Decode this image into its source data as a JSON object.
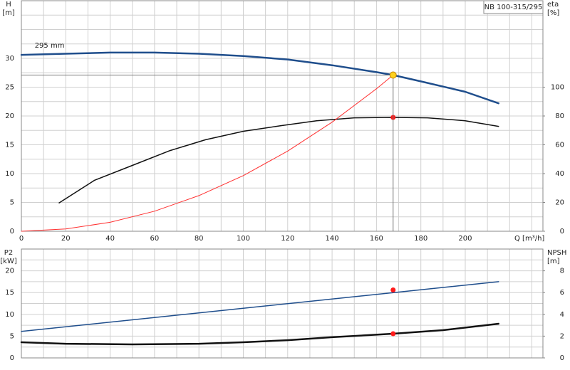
{
  "chart_data": [
    {
      "type": "line",
      "title": "NB 100-315/295",
      "ylabel": "H",
      "yunit": "[m]",
      "y2label": "eta",
      "y2unit": "[%]",
      "xlabel": "Q [m³/h]",
      "xlim": [
        0,
        235
      ],
      "ylim": [
        0,
        40
      ],
      "y2lim": [
        0,
        160
      ],
      "xticks": [
        0,
        20,
        40,
        60,
        80,
        100,
        120,
        140,
        160,
        180,
        200
      ],
      "yticks": [
        0,
        5,
        10,
        15,
        20,
        25,
        30
      ],
      "y2ticks": [
        0,
        20,
        40,
        60,
        80,
        100
      ],
      "xminor": [
        10,
        30,
        50,
        70,
        90,
        110,
        130,
        150,
        170,
        190,
        210,
        220,
        230
      ],
      "yminor": [
        2.5,
        7.5,
        12.5,
        17.5,
        22.5,
        27.5,
        32.5,
        35,
        37.5
      ],
      "annotation": {
        "text": "295 mm",
        "x": 6,
        "y": 32.2
      },
      "series": [
        {
          "color": "#1f4e8c",
          "width": 2.5,
          "x": [
            0,
            20,
            40,
            60,
            80,
            100,
            120,
            140,
            160,
            167.5,
            180,
            200,
            215
          ],
          "values": [
            30.6,
            30.8,
            31,
            31,
            30.8,
            30.4,
            29.8,
            28.8,
            27.6,
            27.1,
            26,
            24.2,
            22.2
          ]
        },
        {
          "color": "#111111",
          "width": 1.5,
          "axis": "y2",
          "x": [
            17,
            33,
            50,
            67,
            83,
            100,
            117,
            133,
            150,
            167,
            183,
            200,
            215
          ],
          "values": [
            19.7,
            35.4,
            45.7,
            56,
            63.5,
            69.4,
            73.3,
            76.7,
            78.7,
            79,
            78.7,
            76.7,
            72.8
          ]
        },
        {
          "color": "#ff3030",
          "width": 1,
          "x": [
            0,
            20,
            40,
            60,
            80,
            100,
            120,
            140,
            160,
            167.5
          ],
          "values": [
            0,
            0.39,
            1.55,
            3.48,
            6.18,
            9.66,
            13.91,
            18.93,
            24.73,
            27.1
          ]
        },
        {
          "color": "#ff1a1a",
          "marker": true,
          "axis": "y2",
          "x": [
            167.5
          ],
          "values": [
            79
          ]
        },
        {
          "color": "#ffd21f",
          "marker": true,
          "guide": true,
          "x": [
            167.5
          ],
          "values": [
            27.1
          ]
        }
      ]
    },
    {
      "type": "line",
      "ylabel": "P2",
      "yunit": "[kW]",
      "y2label": "NPSH",
      "y2unit": "[m]",
      "xlim": [
        0,
        235
      ],
      "ylim": [
        0,
        25
      ],
      "y2lim": [
        0,
        10
      ],
      "yticks": [
        0,
        5,
        10,
        15,
        20
      ],
      "y2ticks": [
        0,
        2,
        4,
        6,
        8
      ],
      "xminor": [
        0,
        10,
        20,
        30,
        40,
        50,
        60,
        70,
        80,
        90,
        100,
        110,
        120,
        130,
        140,
        150,
        160,
        170,
        180,
        190,
        200,
        210,
        220,
        230
      ],
      "yminor": [
        2.5,
        7.5,
        12.5,
        17.5,
        22.5
      ],
      "series": [
        {
          "color": "#1f4e8c",
          "width": 1.5,
          "x": [
            0,
            215
          ],
          "values": [
            6.1,
            17.5
          ]
        },
        {
          "color": "#111111",
          "width": 2.5,
          "axis": "y2",
          "x": [
            0,
            20,
            50,
            80,
            100,
            120,
            140,
            167.5,
            190,
            215
          ],
          "values": [
            1.44,
            1.3,
            1.24,
            1.3,
            1.44,
            1.63,
            1.9,
            2.22,
            2.55,
            3.14
          ]
        },
        {
          "color": "#ff1a1a",
          "marker": true,
          "x": [
            167.5
          ],
          "values": [
            15.6
          ]
        },
        {
          "color": "#ff1a1a",
          "marker": true,
          "axis": "y2",
          "x": [
            167.5
          ],
          "values": [
            2.22
          ]
        }
      ]
    }
  ]
}
